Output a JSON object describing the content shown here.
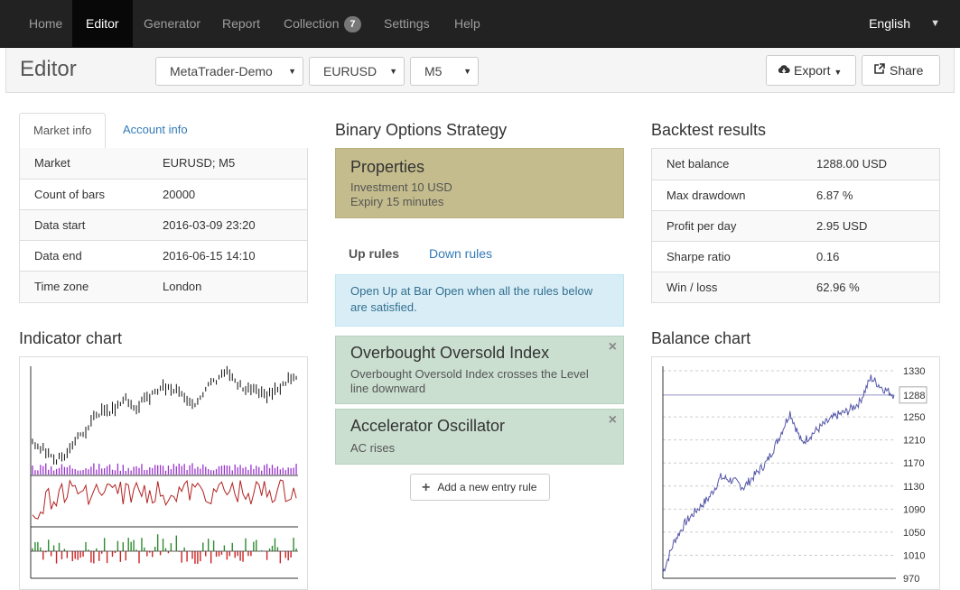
{
  "nav": {
    "items": [
      {
        "label": "Home"
      },
      {
        "label": "Editor"
      },
      {
        "label": "Generator"
      },
      {
        "label": "Report"
      },
      {
        "label": "Collection",
        "badge": "7"
      },
      {
        "label": "Settings"
      },
      {
        "label": "Help"
      }
    ],
    "language": "English"
  },
  "toolbar": {
    "title": "Editor",
    "server": "MetaTrader-Demo",
    "symbol": "EURUSD",
    "period": "M5",
    "export_label": "Export",
    "share_label": "Share"
  },
  "market": {
    "tabs": [
      "Market info",
      "Account info"
    ],
    "rows": [
      {
        "label": "Market",
        "value": "EURUSD; M5"
      },
      {
        "label": "Count of bars",
        "value": "20000"
      },
      {
        "label": "Data start",
        "value": "2016-03-09 23:20"
      },
      {
        "label": "Data end",
        "value": "2016-06-15 14:10"
      },
      {
        "label": "Time zone",
        "value": "London"
      }
    ]
  },
  "indicator_chart": {
    "title": "Indicator chart"
  },
  "strategy": {
    "title": "Binary Options Strategy",
    "properties": {
      "heading": "Properties",
      "investment": "Investment 10 USD",
      "expiry": "Expiry 15 minutes"
    },
    "rule_tabs": [
      "Up rules",
      "Down rules"
    ],
    "info": "Open Up at Bar Open when all the rules below are satisfied.",
    "rules": [
      {
        "name": "Overbought Oversold Index",
        "text": "Overbought Oversold Index crosses the Level line downward"
      },
      {
        "name": "Accelerator Oscillator",
        "text": "AC rises"
      }
    ],
    "add_label": "Add a new entry rule"
  },
  "backtest": {
    "title": "Backtest results",
    "rows": [
      {
        "label": "Net balance",
        "value": "1288.00 USD"
      },
      {
        "label": "Max drawdown",
        "value": "6.87 %"
      },
      {
        "label": "Profit per day",
        "value": "2.95 USD"
      },
      {
        "label": "Sharpe ratio",
        "value": "0.16"
      },
      {
        "label": "Win / loss",
        "value": "62.96 %"
      }
    ]
  },
  "balance_chart": {
    "title": "Balance chart",
    "ticks": [
      "1330",
      "1288",
      "1250",
      "1210",
      "1170",
      "1130",
      "1090",
      "1050",
      "1010",
      "970"
    ],
    "current": "1288"
  },
  "chart_data": [
    {
      "type": "line",
      "title": "Balance chart",
      "ylim": [
        970,
        1330
      ],
      "x": [
        0,
        5,
        10,
        15,
        20,
        25,
        30,
        35,
        40,
        45,
        50,
        55,
        60,
        65,
        70,
        75,
        80,
        85,
        90,
        95,
        100
      ],
      "values": [
        980,
        1035,
        1068,
        1090,
        1110,
        1145,
        1140,
        1128,
        1150,
        1172,
        1212,
        1258,
        1205,
        1222,
        1238,
        1252,
        1260,
        1275,
        1318,
        1300,
        1288
      ]
    }
  ]
}
